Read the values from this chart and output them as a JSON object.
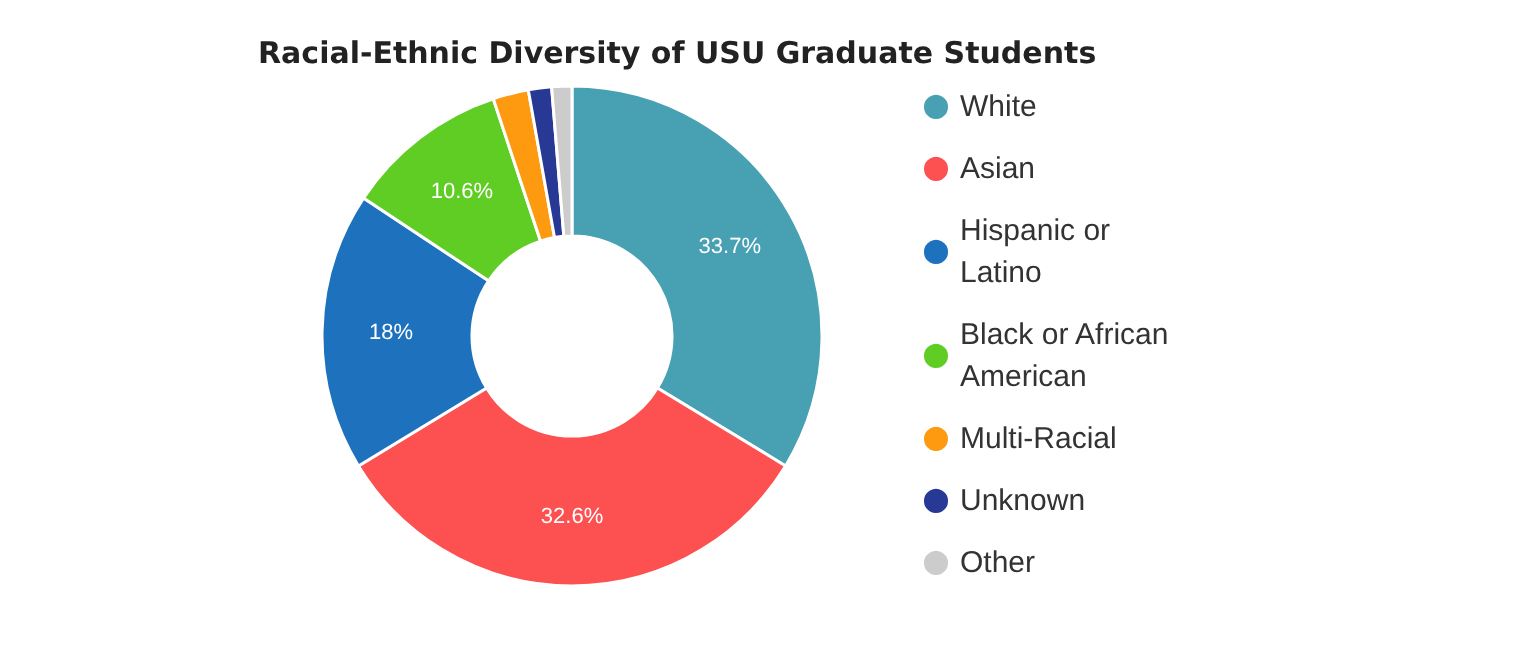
{
  "chart_data": {
    "type": "donut",
    "title": "Racial-Ethnic Diversity of USU Graduate Students",
    "categories": [
      "White",
      "Asian",
      "Hispanic or Latino",
      "Black or African American",
      "Multi-Racial",
      "Unknown",
      "Other"
    ],
    "values": [
      33.7,
      32.6,
      18,
      10.6,
      2.3,
      1.5,
      1.3
    ],
    "colors": [
      "#48a0b3",
      "#fd5050",
      "#1e72bd",
      "#60cd24",
      "#fd9a0f",
      "#283895",
      "#cccccc"
    ],
    "value_labels": [
      "33.7%",
      "32.6%",
      "18%",
      "10.6%",
      null,
      null,
      null
    ],
    "legend": "right"
  }
}
